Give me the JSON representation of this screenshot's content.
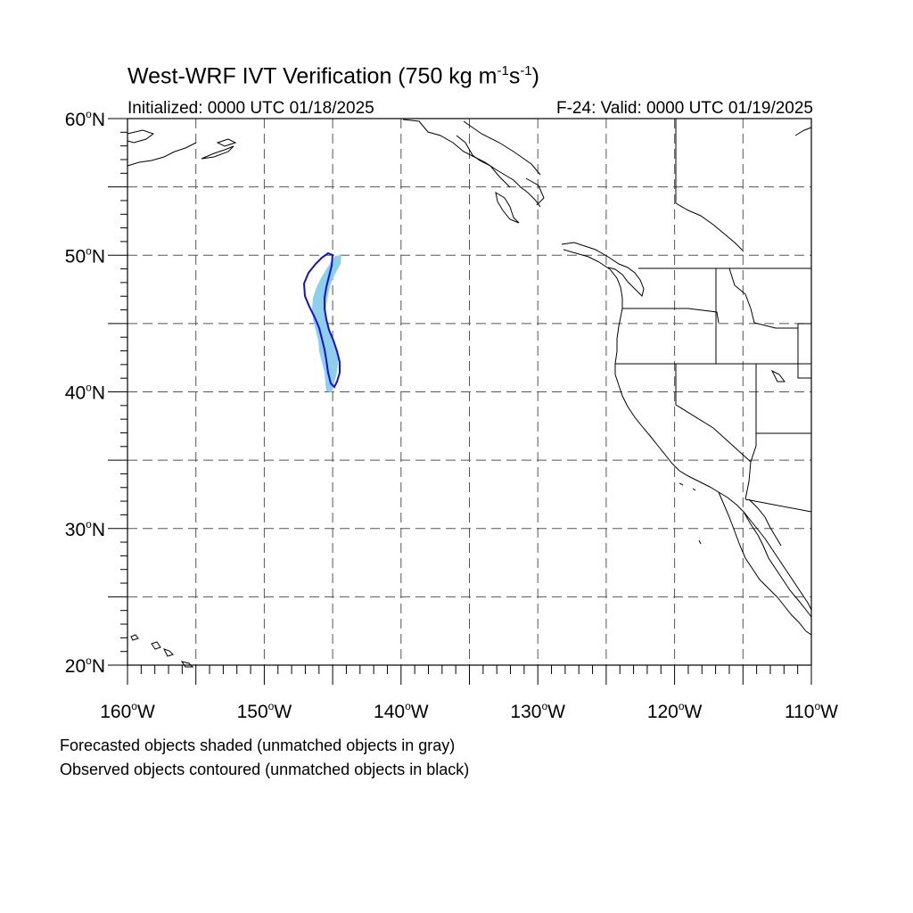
{
  "title": {
    "prefix": "West-WRF IVT Verification (750 kg m",
    "exp1": "-1",
    "mid": "s",
    "exp2": "-1",
    "suffix": ")"
  },
  "initialized": "Initialized: 0000 UTC 01/18/2025",
  "valid": "F-24: Valid: 0000 UTC 01/19/2025",
  "lat_labels": [
    {
      "deg": 60,
      "text": "60",
      "suffix": "N"
    },
    {
      "deg": 50,
      "text": "50",
      "suffix": "N"
    },
    {
      "deg": 40,
      "text": "40",
      "suffix": "N"
    },
    {
      "deg": 30,
      "text": "30",
      "suffix": "N"
    },
    {
      "deg": 20,
      "text": "20",
      "suffix": "N"
    }
  ],
  "lon_labels": [
    {
      "deg": -160,
      "text": "160",
      "suffix": "W"
    },
    {
      "deg": -150,
      "text": "150",
      "suffix": "W"
    },
    {
      "deg": -140,
      "text": "140",
      "suffix": "W"
    },
    {
      "deg": -130,
      "text": "130",
      "suffix": "W"
    },
    {
      "deg": -120,
      "text": "120",
      "suffix": "W"
    },
    {
      "deg": -110,
      "text": "110",
      "suffix": "W"
    }
  ],
  "extent": {
    "lon_min": -160,
    "lon_max": -110,
    "lat_min": 20,
    "lat_max": 60
  },
  "gridline_spacing_deg": 5,
  "colors": {
    "forecast_fill": "#8ecfea",
    "observed_contour": "#1010e0",
    "coastline": "#000000",
    "gridline": "#555555"
  },
  "notes": [
    "Forecasted objects shaded (unmatched objects in gray)",
    "Observed objects contoured (unmatched objects in black)"
  ]
}
